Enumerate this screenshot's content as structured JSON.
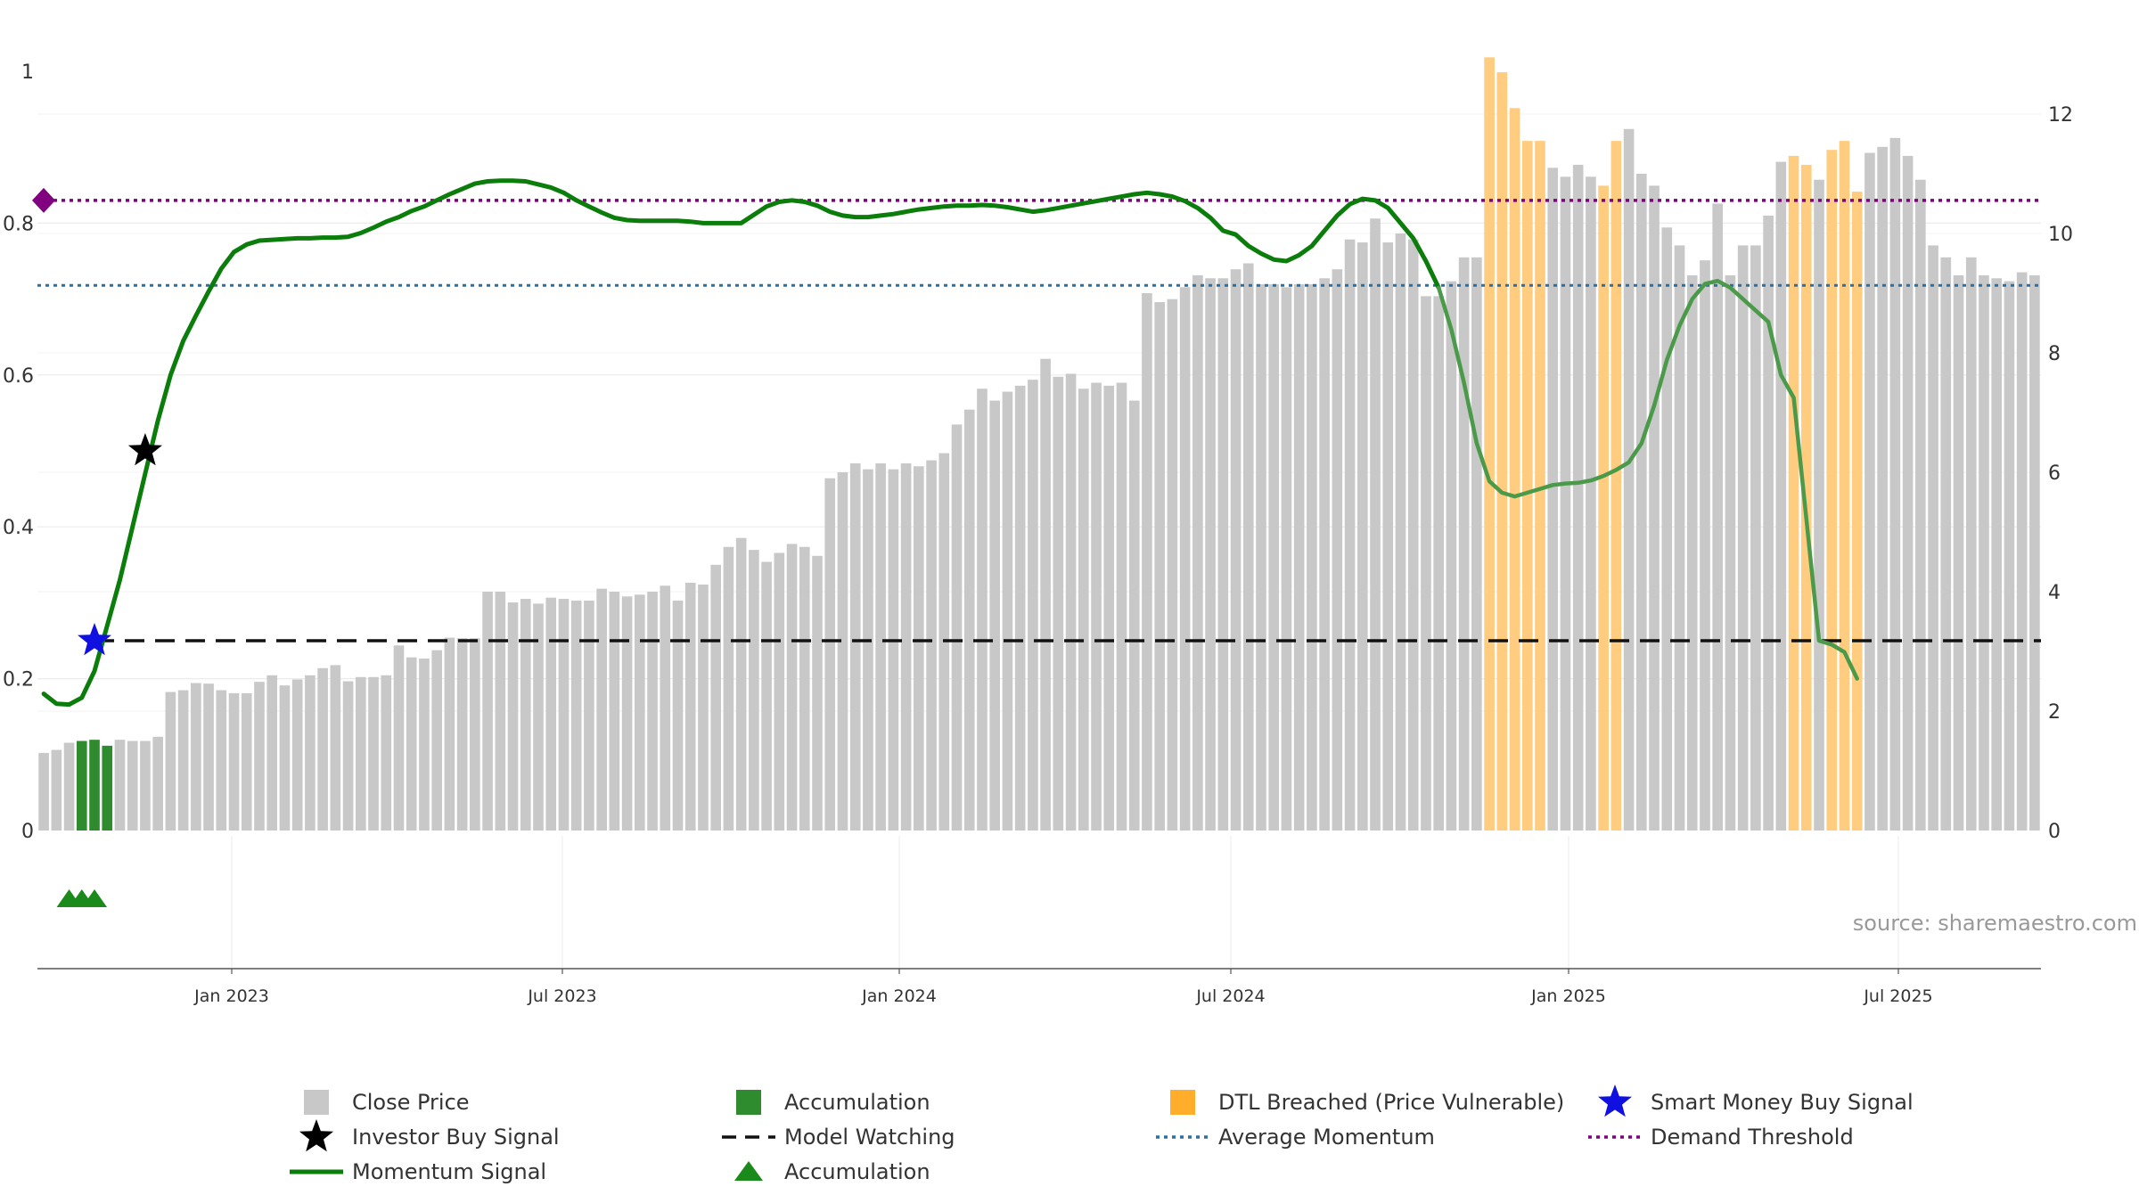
{
  "source_text": "source: sharemaestro.com",
  "colors": {
    "close_price": "#c8c8c8",
    "accumulation": "#2e8b2e",
    "dtl_breached": "#ffcc80",
    "momentum": "#0a7d0a",
    "momentum_faded": "#4a9a4a",
    "model_watching": "#111111",
    "average_momentum": "#2f6f9f",
    "demand_threshold": "#800080",
    "smart_money_star": "#1010e0",
    "investor_star": "#000000"
  },
  "chart_data": {
    "type": "bar+line",
    "x_tick_labels": [
      "Jan 2023",
      "Jul 2023",
      "Jan 2024",
      "Jul 2024",
      "Jan 2025",
      "Jul 2025"
    ],
    "left_axis": {
      "range": [
        0,
        1
      ],
      "tick_labels": [
        "0",
        "0.2",
        "0.4",
        "0.6",
        "0.8",
        "1"
      ]
    },
    "right_axis": {
      "range": [
        0,
        13
      ],
      "tick_labels": [
        "0",
        "2",
        "4",
        "6",
        "8",
        "10",
        "12"
      ]
    },
    "close_price": [
      1.3,
      1.35,
      1.47,
      1.5,
      1.52,
      1.42,
      1.52,
      1.5,
      1.5,
      1.57,
      2.32,
      2.35,
      2.47,
      2.46,
      2.35,
      2.3,
      2.3,
      2.49,
      2.6,
      2.43,
      2.53,
      2.6,
      2.72,
      2.77,
      2.5,
      2.57,
      2.57,
      2.6,
      3.1,
      2.9,
      2.88,
      3.02,
      3.23,
      3.22,
      3.22,
      4.0,
      4.0,
      3.82,
      3.88,
      3.8,
      3.9,
      3.88,
      3.85,
      3.85,
      4.05,
      4.0,
      3.92,
      3.95,
      4.0,
      4.1,
      3.85,
      4.15,
      4.12,
      4.45,
      4.75,
      4.9,
      4.7,
      4.5,
      4.65,
      4.8,
      4.75,
      4.6,
      5.9,
      6.0,
      6.15,
      6.05,
      6.15,
      6.05,
      6.15,
      6.1,
      6.2,
      6.32,
      6.8,
      7.05,
      7.4,
      7.2,
      7.35,
      7.45,
      7.55,
      7.9,
      7.6,
      7.65,
      7.4,
      7.5,
      7.45,
      7.5,
      7.2,
      9.0,
      8.85,
      8.9,
      9.1,
      9.3,
      9.25,
      9.25,
      9.4,
      9.5,
      9.15,
      9.15,
      9.1,
      9.15,
      9.15,
      9.25,
      9.4,
      9.9,
      9.85,
      10.25,
      9.85,
      10.0,
      9.9,
      8.95,
      8.95,
      9.2,
      9.6,
      9.6,
      12.95,
      12.7,
      12.1,
      11.55,
      11.55,
      11.1,
      10.95,
      11.15,
      10.95,
      10.8,
      11.55,
      11.75,
      11.0,
      10.8,
      10.1,
      9.8,
      9.3,
      9.55,
      10.5,
      9.3,
      9.8,
      9.8,
      10.3,
      11.2,
      11.3,
      11.15,
      10.9,
      11.4,
      11.55,
      10.7,
      11.35,
      11.45,
      11.6,
      11.3,
      10.9,
      9.8,
      9.6,
      9.3,
      9.6,
      9.3,
      9.25,
      9.2,
      9.35,
      9.3
    ],
    "accumulation_bar_indices": [
      3,
      4,
      5
    ],
    "dtl_breached_bar_indices": [
      114,
      115,
      116,
      117,
      118,
      123,
      124,
      138,
      139,
      141,
      142,
      143
    ],
    "momentum_signal": [
      0.18,
      0.167,
      0.166,
      0.175,
      0.21,
      0.27,
      0.33,
      0.4,
      0.47,
      0.54,
      0.6,
      0.645,
      0.678,
      0.71,
      0.74,
      0.762,
      0.772,
      0.777,
      0.778,
      0.779,
      0.78,
      0.78,
      0.781,
      0.781,
      0.782,
      0.787,
      0.794,
      0.802,
      0.808,
      0.816,
      0.822,
      0.83,
      0.838,
      0.845,
      0.852,
      0.855,
      0.856,
      0.856,
      0.855,
      0.851,
      0.847,
      0.84,
      0.83,
      0.822,
      0.814,
      0.807,
      0.804,
      0.803,
      0.803,
      0.803,
      0.803,
      0.802,
      0.8,
      0.8,
      0.8,
      0.8,
      0.811,
      0.822,
      0.828,
      0.83,
      0.828,
      0.823,
      0.815,
      0.81,
      0.808,
      0.808,
      0.81,
      0.812,
      0.815,
      0.818,
      0.82,
      0.822,
      0.823,
      0.823,
      0.824,
      0.823,
      0.821,
      0.818,
      0.815,
      0.817,
      0.82,
      0.823,
      0.826,
      0.829,
      0.832,
      0.835,
      0.838,
      0.84,
      0.838,
      0.835,
      0.829,
      0.82,
      0.807,
      0.79,
      0.785,
      0.77,
      0.76,
      0.752,
      0.75,
      0.758,
      0.77,
      0.79,
      0.81,
      0.825,
      0.832,
      0.83,
      0.82,
      0.8,
      0.78,
      0.75,
      0.715,
      0.66,
      0.59,
      0.51,
      0.46,
      0.445,
      0.44,
      0.445,
      0.45,
      0.455,
      0.457,
      0.458,
      0.461,
      0.467,
      0.475,
      0.485,
      0.51,
      0.56,
      0.62,
      0.665,
      0.7,
      0.72,
      0.724,
      0.715,
      0.7,
      0.685,
      0.67,
      0.6,
      0.57,
      0.41,
      0.25,
      0.245,
      0.235,
      0.2
    ],
    "momentum_faded_from_index": 110,
    "model_watching_level": 0.25,
    "model_watching_start_index": 4,
    "average_momentum": 0.718,
    "demand_threshold": 0.83,
    "smart_money_buy_signal": {
      "index": 4,
      "value": 0.25
    },
    "investor_buy_signal": {
      "index": 8,
      "value": 0.5
    },
    "accumulation_marker_indices": [
      2,
      3,
      4
    ],
    "demand_marker_value": 0.83
  },
  "legend": [
    {
      "label": "Close Price",
      "symbol": "square-gray"
    },
    {
      "label": "Accumulation",
      "symbol": "square-green"
    },
    {
      "label": "DTL Breached (Price Vulnerable)",
      "symbol": "square-orange"
    },
    {
      "label": "Smart Money Buy Signal",
      "symbol": "star-blue"
    },
    {
      "label": "Investor Buy Signal",
      "symbol": "star-black"
    },
    {
      "label": "Model Watching",
      "symbol": "dash-black"
    },
    {
      "label": "Average Momentum",
      "symbol": "dot-blue"
    },
    {
      "label": "Demand Threshold",
      "symbol": "dot-purple"
    },
    {
      "label": "Momentum Signal",
      "symbol": "line-green"
    },
    {
      "label": "Accumulation",
      "symbol": "triangle-green"
    }
  ]
}
